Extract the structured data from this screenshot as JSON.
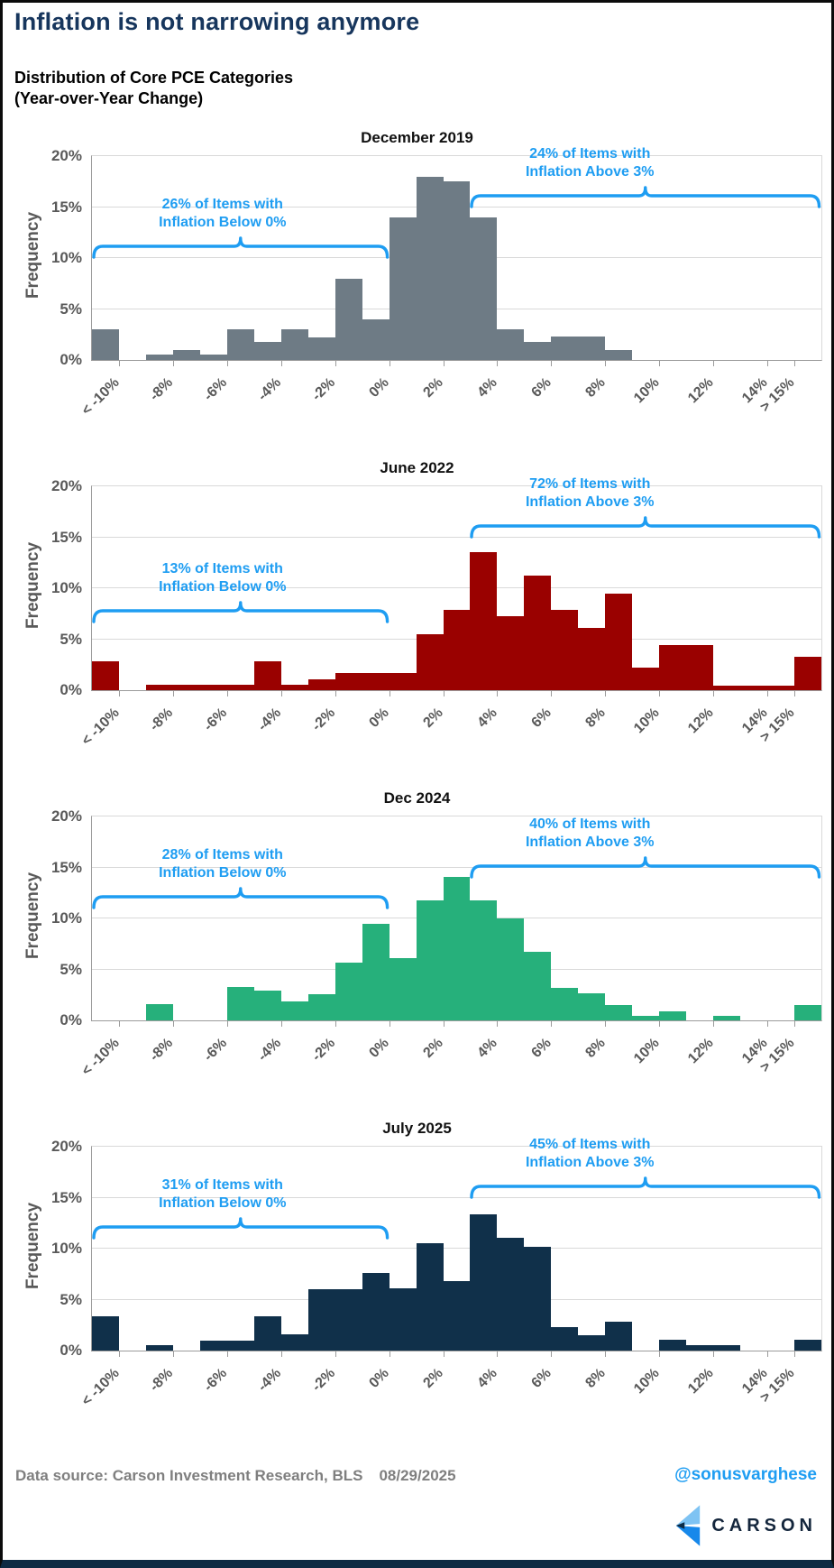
{
  "header": {
    "title": "Inflation is not narrowing anymore",
    "subtitle_line1": "Distribution of Core PCE Categories",
    "subtitle_line2": "(Year-over-Year Change)"
  },
  "axis": {
    "y_label": "Frequency",
    "y_tick_labels": [
      "20%",
      "15%",
      "10%",
      "5%",
      "0%"
    ],
    "y_tick_values": [
      20,
      15,
      10,
      5,
      0
    ],
    "x_labels": [
      "< -10%",
      "-8%",
      "-6%",
      "-4%",
      "-2%",
      "0%",
      "2%",
      "4%",
      "6%",
      "8%",
      "10%",
      "12%",
      "14%",
      "> 15%"
    ]
  },
  "chart_data": [
    {
      "type": "bar",
      "title": "December 2019",
      "color": "#6e7b85",
      "ylabel": "Frequency",
      "ylim": [
        0,
        20
      ],
      "bin_width_pct": 1,
      "bin_lower_edges": [
        "<-10",
        "-10",
        "-9",
        "-8",
        "-7",
        "-6",
        "-5",
        "-4",
        "-3",
        "-2",
        "-1",
        "0",
        "1",
        "2",
        "3",
        "4",
        "5",
        "6",
        "7",
        "8",
        "9",
        "10",
        "11",
        "12",
        "13",
        "14",
        ">15"
      ],
      "values": [
        3,
        0,
        0.5,
        1,
        0.5,
        3,
        1.8,
        3,
        2.2,
        8,
        4,
        14,
        18,
        17.5,
        14,
        3,
        1.8,
        2.3,
        2.3,
        1,
        0,
        0,
        0,
        0,
        0,
        0,
        0
      ],
      "annotations": {
        "below": {
          "line1": "26% of Items with",
          "line2": "Inflation Below 0%",
          "bracket_y_pct": 10
        },
        "above": {
          "line1": "24% of Items with",
          "line2": "Inflation Above 3%",
          "bracket_y_pct": 15
        }
      }
    },
    {
      "type": "bar",
      "title": "June 2022",
      "color": "#9a0100",
      "ylabel": "Frequency",
      "ylim": [
        0,
        20
      ],
      "bin_width_pct": 1,
      "bin_lower_edges": [
        "<-10",
        "-10",
        "-9",
        "-8",
        "-7",
        "-6",
        "-5",
        "-4",
        "-3",
        "-2",
        "-1",
        "0",
        "1",
        "2",
        "3",
        "4",
        "5",
        "6",
        "7",
        "8",
        "9",
        "10",
        "11",
        "12",
        "13",
        "14",
        ">15"
      ],
      "values": [
        2.8,
        0,
        0.5,
        0.5,
        0.5,
        0.5,
        2.8,
        0.5,
        1.1,
        1.7,
        1.7,
        1.7,
        5.5,
        7.9,
        13.5,
        7.3,
        11.2,
        7.9,
        6.1,
        9.5,
        2.2,
        4.4,
        4.4,
        0.4,
        0.4,
        0.4,
        3.3
      ],
      "annotations": {
        "below": {
          "line1": "13% of Items with",
          "line2": "Inflation Below 0%",
          "bracket_y_pct": 6.6
        },
        "above": {
          "line1": "72% of Items with",
          "line2": "Inflation Above 3%",
          "bracket_y_pct": 15
        }
      }
    },
    {
      "type": "bar",
      "title": "Dec 2024",
      "color": "#26b07b",
      "ylabel": "Frequency",
      "ylim": [
        0,
        20
      ],
      "bin_width_pct": 1,
      "bin_lower_edges": [
        "<-10",
        "-10",
        "-9",
        "-8",
        "-7",
        "-6",
        "-5",
        "-4",
        "-3",
        "-2",
        "-1",
        "0",
        "1",
        "2",
        "3",
        "4",
        "5",
        "6",
        "7",
        "8",
        "9",
        "10",
        "11",
        "12",
        "13",
        "14",
        ">15"
      ],
      "values": [
        0,
        0,
        1.6,
        0,
        0,
        3.3,
        2.9,
        1.9,
        2.6,
        5.7,
        9.5,
        6.1,
        11.8,
        14.1,
        11.8,
        10,
        6.7,
        3.2,
        2.7,
        1.5,
        0.4,
        0.9,
        0,
        0.4,
        0,
        0,
        1.5
      ],
      "annotations": {
        "below": {
          "line1": "28% of Items with",
          "line2": "Inflation Below 0%",
          "bracket_y_pct": 11
        },
        "above": {
          "line1": "40% of Items with",
          "line2": "Inflation Above 3%",
          "bracket_y_pct": 14
        }
      }
    },
    {
      "type": "bar",
      "title": "July 2025",
      "color": "#10304a",
      "ylabel": "Frequency",
      "ylim": [
        0,
        20
      ],
      "bin_width_pct": 1,
      "bin_lower_edges": [
        "<-10",
        "-10",
        "-9",
        "-8",
        "-7",
        "-6",
        "-5",
        "-4",
        "-3",
        "-2",
        "-1",
        "0",
        "1",
        "2",
        "3",
        "4",
        "5",
        "6",
        "7",
        "8",
        "9",
        "10",
        "11",
        "12",
        "13",
        "14",
        ">15"
      ],
      "values": [
        3.4,
        0,
        0.5,
        0,
        1.0,
        1.0,
        3.4,
        1.6,
        6.0,
        6.0,
        7.6,
        6.1,
        10.5,
        6.8,
        13.4,
        11.1,
        10.2,
        2.3,
        1.5,
        2.8,
        0,
        1.1,
        0.5,
        0.5,
        0,
        0,
        1.1
      ],
      "annotations": {
        "below": {
          "line1": "31% of Items with",
          "line2": "Inflation Below 0%",
          "bracket_y_pct": 11
        },
        "above": {
          "line1": "45% of Items with",
          "line2": "Inflation Above 3%",
          "bracket_y_pct": 15
        }
      }
    }
  ],
  "colors": {
    "accent_blue": "#1e9df2",
    "title_navy": "#17365d",
    "axis_gray": "#595959",
    "source_gray": "#7f7f7f",
    "grid_gray": "#d9d9d9",
    "logo_light_blue": "#7ec3f3",
    "logo_blue": "#1788ea",
    "logo_navy": "#0d2b45"
  },
  "footer": {
    "source": "Data source: Carson Investment Research, BLS",
    "date": "08/29/2025",
    "handle": "@sonusvarghese",
    "brand": "CARSON"
  }
}
